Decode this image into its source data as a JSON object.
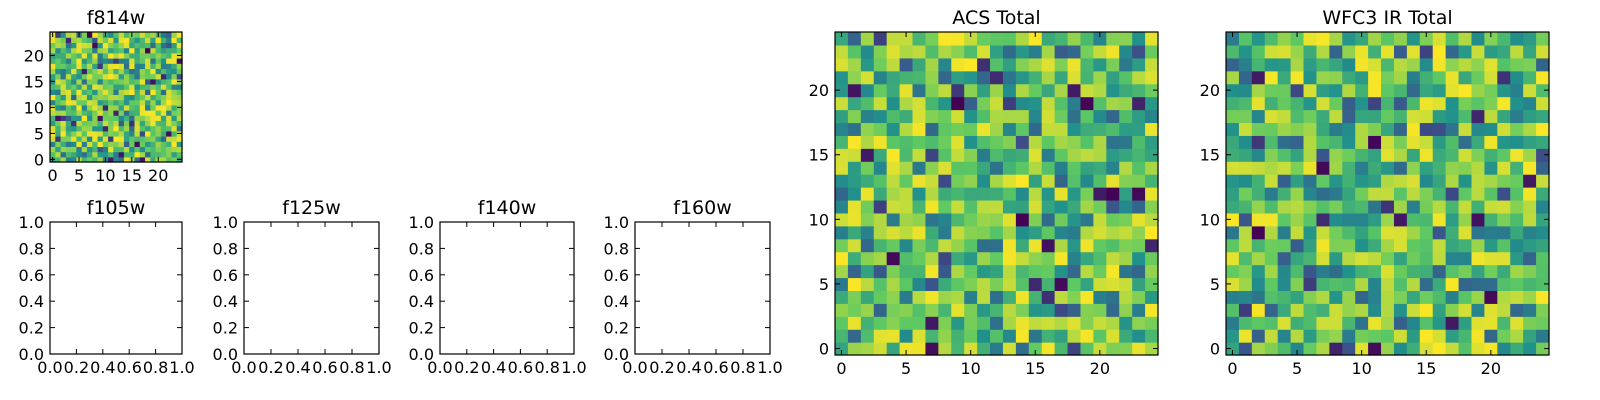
{
  "chart_data": [
    {
      "id": "f814w",
      "type": "heatmap",
      "title": "f814w",
      "grid_size": 25,
      "xticks": [
        "0",
        "5",
        "10",
        "15",
        "20"
      ],
      "yticks": [
        "0",
        "5",
        "10",
        "15",
        "20"
      ],
      "colormap": "viridis",
      "seed": 11
    },
    {
      "id": "f105w",
      "type": "empty",
      "title": "f105w",
      "xticks": [
        "0.0",
        "0.2",
        "0.4",
        "0.6",
        "0.8",
        "1.0"
      ],
      "yticks": [
        "0.0",
        "0.2",
        "0.4",
        "0.6",
        "0.8",
        "1.0"
      ]
    },
    {
      "id": "f125w",
      "type": "empty",
      "title": "f125w",
      "xticks": [
        "0.0",
        "0.2",
        "0.4",
        "0.6",
        "0.8",
        "1.0"
      ],
      "yticks": [
        "0.0",
        "0.2",
        "0.4",
        "0.6",
        "0.8",
        "1.0"
      ]
    },
    {
      "id": "f140w",
      "type": "empty",
      "title": "f140w",
      "xticks": [
        "0.0",
        "0.2",
        "0.4",
        "0.6",
        "0.8",
        "1.0"
      ],
      "yticks": [
        "0.0",
        "0.2",
        "0.4",
        "0.6",
        "0.8",
        "1.0"
      ]
    },
    {
      "id": "f160w",
      "type": "empty",
      "title": "f160w",
      "xticks": [
        "0.0",
        "0.2",
        "0.4",
        "0.6",
        "0.8",
        "1.0"
      ],
      "yticks": [
        "0.0",
        "0.2",
        "0.4",
        "0.6",
        "0.8",
        "1.0"
      ]
    },
    {
      "id": "acs-total",
      "type": "heatmap",
      "title": "ACS Total",
      "grid_size": 25,
      "xticks": [
        "0",
        "5",
        "10",
        "15",
        "20"
      ],
      "yticks": [
        "0",
        "5",
        "10",
        "15",
        "20"
      ],
      "colormap": "viridis",
      "seed": 29
    },
    {
      "id": "wfc3-ir-total",
      "type": "heatmap",
      "title": "WFC3 IR Total",
      "grid_size": 25,
      "xticks": [
        "0",
        "5",
        "10",
        "15",
        "20"
      ],
      "yticks": [
        "0",
        "5",
        "10",
        "15",
        "20"
      ],
      "colormap": "viridis",
      "seed": 47
    }
  ]
}
